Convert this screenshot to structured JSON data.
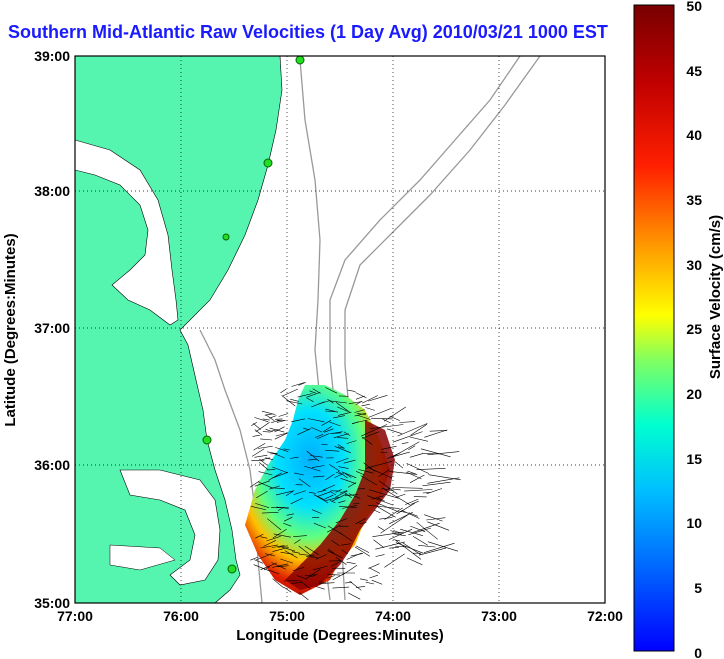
{
  "title": "Southern Mid-Atlantic Raw Velocities (1 Day Avg) 2010/03/21 1000 EST",
  "map": {
    "x_axis": {
      "label": "Longitude (Degrees:Minutes)",
      "ticks": [
        "77:00",
        "76:00",
        "75:00",
        "74:00",
        "73:00",
        "72:00"
      ]
    },
    "y_axis": {
      "label": "Latitude (Degrees:Minutes)",
      "ticks": [
        "39:00",
        "38:00",
        "37:00",
        "36:00",
        "35:00"
      ]
    },
    "grid": "dotted",
    "land_color": "#55f5b0",
    "bathymetry_color": "#999999"
  },
  "colorbar": {
    "label": "Surface Velocity (cm/s)",
    "ticks": [
      "50",
      "45",
      "40",
      "35",
      "30",
      "25",
      "20",
      "15",
      "10",
      "5",
      "0"
    ],
    "range": [
      0,
      50
    ],
    "colormap": "jet (blue → cyan → yellow → red → dark red)"
  }
}
